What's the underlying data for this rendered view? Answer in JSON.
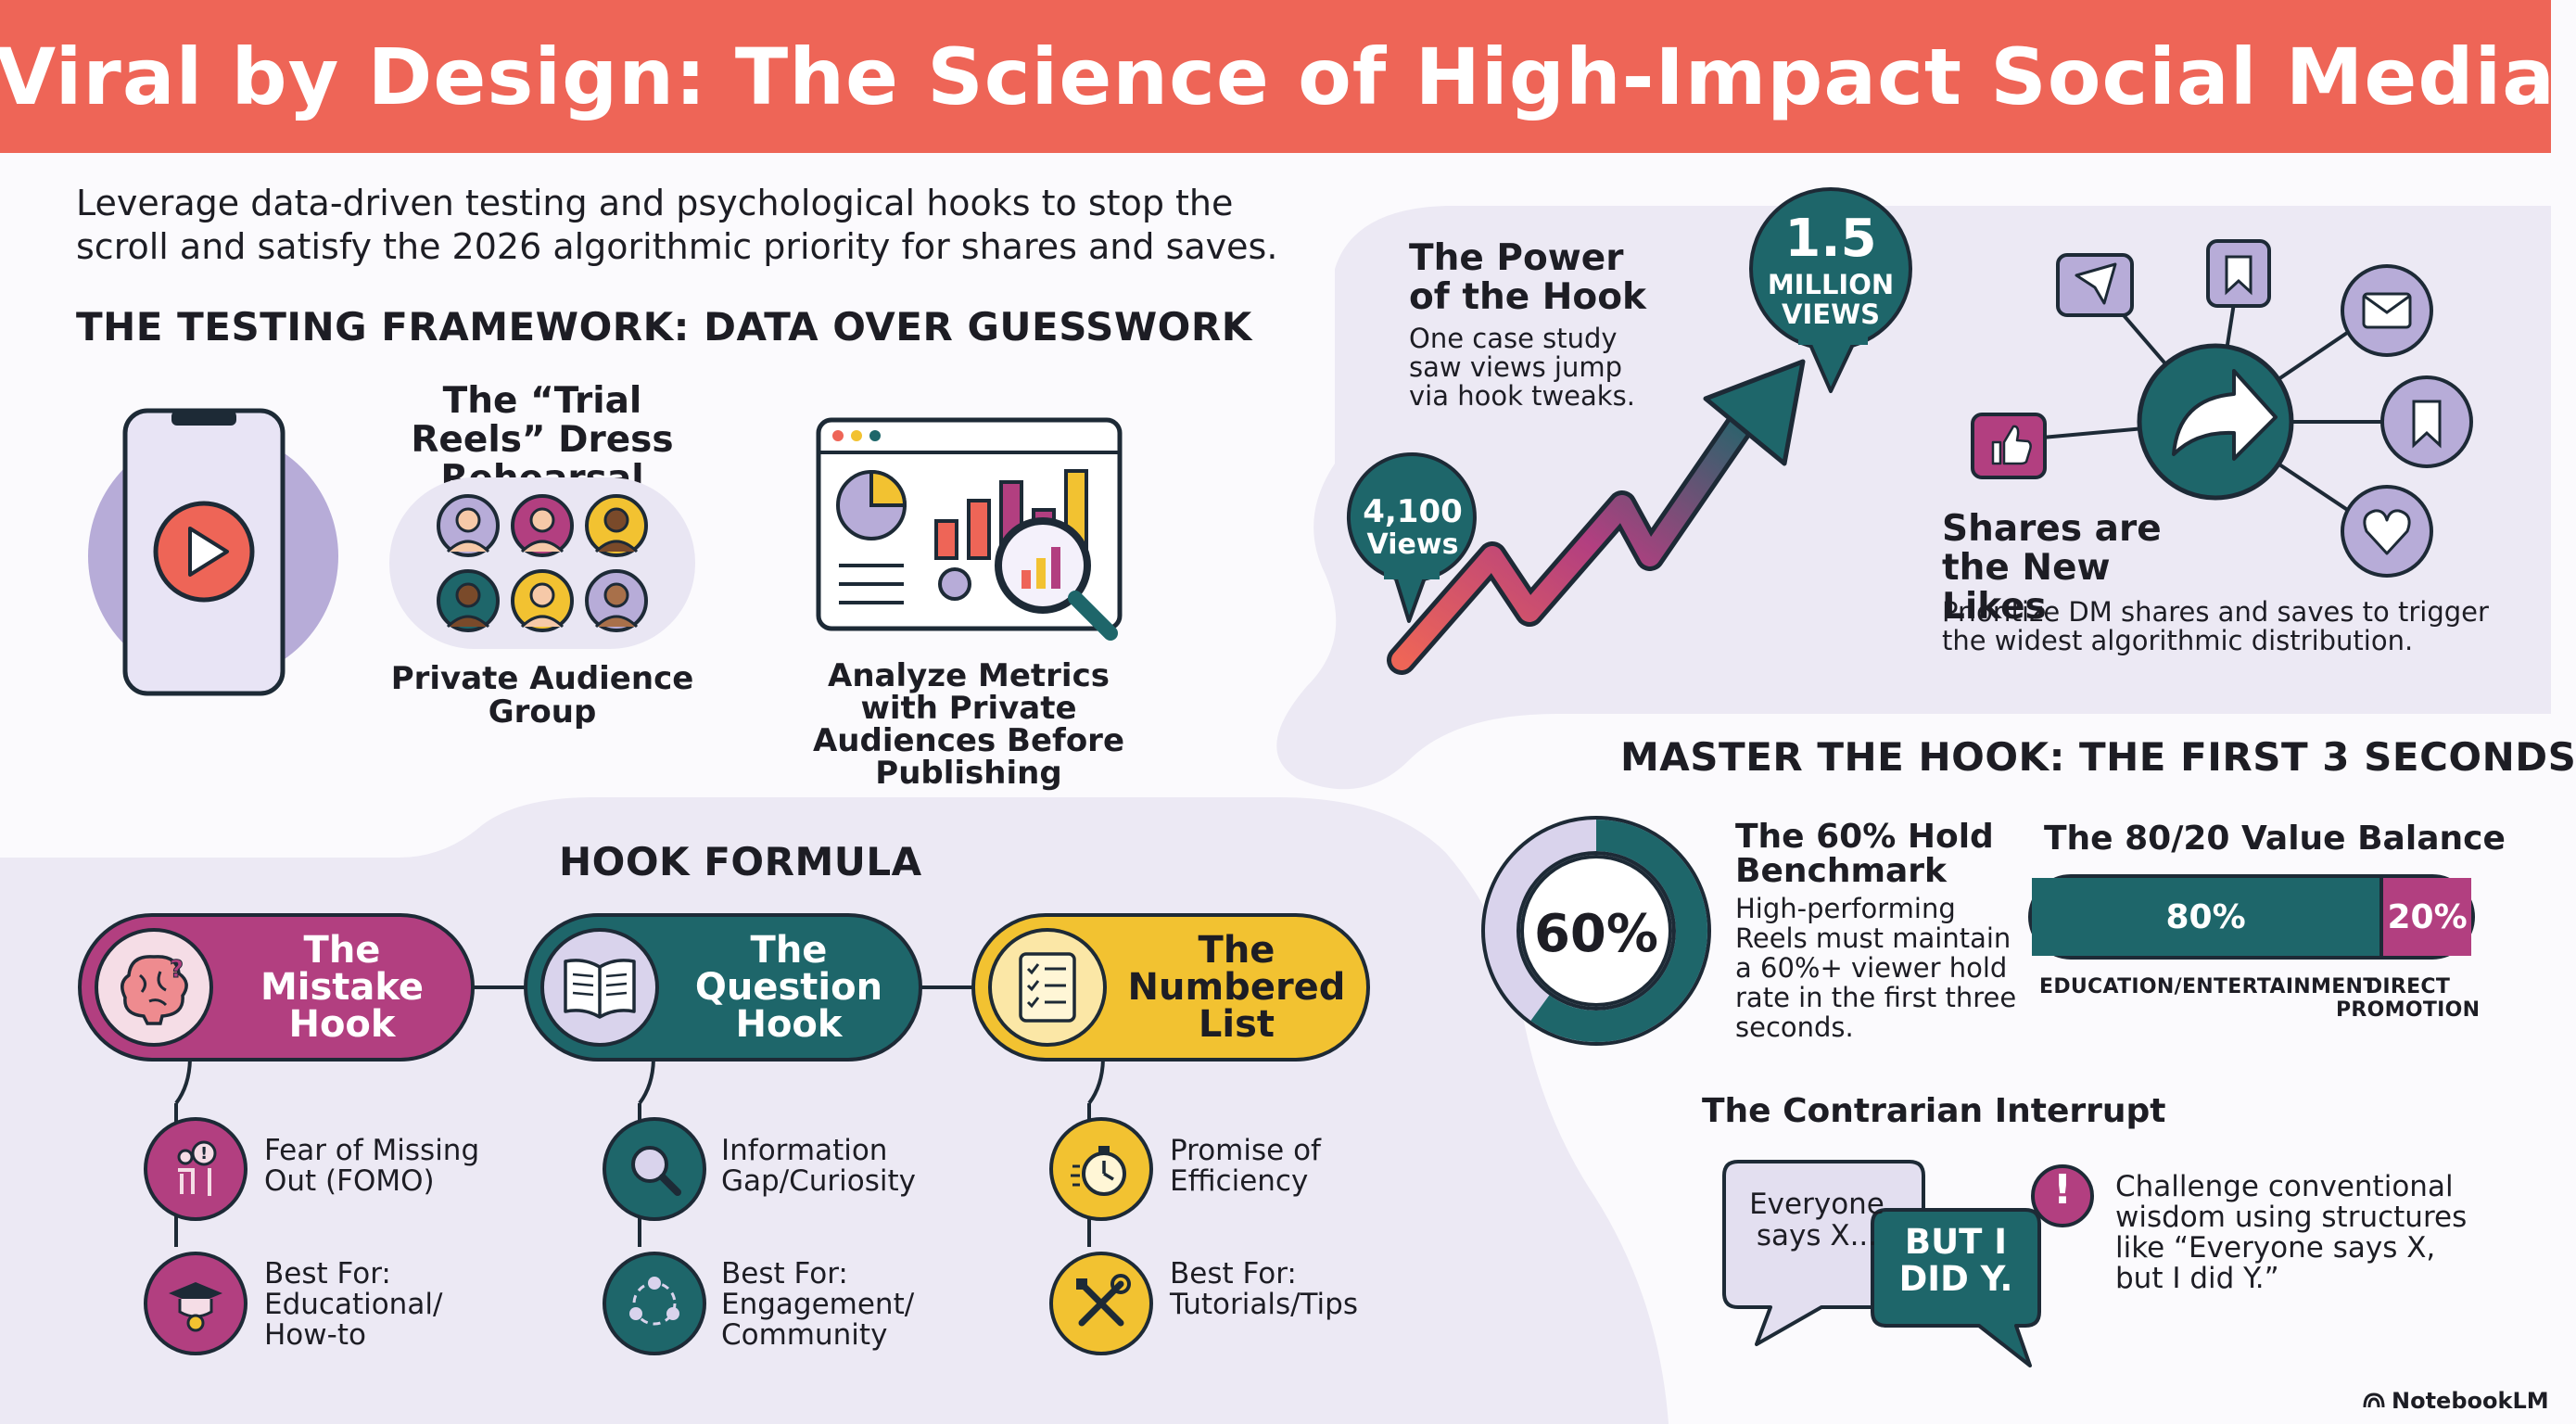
{
  "title": "Viral by Design: The Science of High-Impact Social Media",
  "intro": "Leverage data-driven testing and psychological hooks to stop the scroll and satisfy the 2026 algorithmic priority for shares and saves.",
  "testing": {
    "heading": "THE TESTING FRAMEWORK: DATA OVER GUESSWORK",
    "trial_title": "The “Trial Reels” Dress Rehearsal",
    "audience_label": "Private Audience Group",
    "analyze_label": "Analyze Metrics with Private Audiences Before Publishing"
  },
  "power": {
    "title": "The Power of the Hook",
    "desc": "One case study saw views jump via hook tweaks.",
    "start_value": "4,100",
    "start_unit": "Views",
    "end_value": "1.5",
    "end_unit_1": "MILLION",
    "end_unit_2": "VIEWS"
  },
  "shares": {
    "title": "Shares are the New Likes",
    "desc": "Prioritize DM shares and saves to trigger the widest algorithmic distribution."
  },
  "master": {
    "heading": "MASTER THE HOOK: THE FIRST 3 SECONDS",
    "hold_value": "60%",
    "hold_fraction": 0.6,
    "hold_title": "The 60% Hold Benchmark",
    "hold_desc": "High-performing Reels must maintain a 60%+ viewer hold rate in the first three seconds.",
    "balance_title": "The 80/20 Value Balance",
    "balance_left_value": "80%",
    "balance_left_fraction": 0.8,
    "balance_right_value": "20%",
    "balance_left_label": "EDUCATION/ENTERTAINMENT",
    "balance_right_label": "DIRECT PROMOTION",
    "contrarian_title": "The Contrarian Interrupt",
    "bubble1": "Everyone says X...",
    "bubble2": "BUT I DID Y.",
    "bubble_alert": "!",
    "contrarian_desc": "Challenge conventional wisdom using structures like “Everyone says X, but I did Y.”"
  },
  "hook_formula": {
    "heading": "HOOK FORMULA",
    "items": [
      {
        "title": "The Mistake Hook",
        "sub1": "Fear of Missing Out (FOMO)",
        "sub2": "Best For: Educational/ How-to",
        "color": "#b23f80",
        "icon": "brain-icon"
      },
      {
        "title": "The Question Hook",
        "sub1": "Information Gap/Curiosity",
        "sub2": "Best For: Engagement/ Community",
        "color": "#1e666a",
        "icon": "book-icon"
      },
      {
        "title": "The Numbered List",
        "sub1": "Promise of Efficiency",
        "sub2": "Best For: Tutorials/Tips",
        "color": "#f2c231",
        "icon": "checklist-icon"
      }
    ]
  },
  "brand": "NotebookLM",
  "colors": {
    "coral": "#ee6557",
    "teal": "#1e666a",
    "magenta": "#b23f80",
    "yellow": "#f2c231",
    "lavender": "#b7acd8"
  }
}
